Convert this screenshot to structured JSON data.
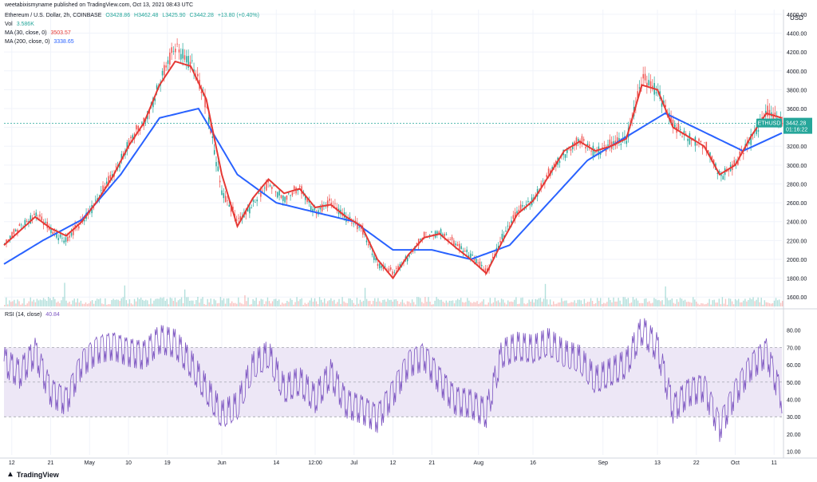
{
  "header": {
    "publisher": "weetabixismyname published on TradingView.com, Oct 13, 2021 08:43 UTC",
    "symbol": "Ethereum / U.S. Dollar, 2h, COINBASE",
    "ohlc": {
      "o": "O3428.86",
      "h": "H3462.48",
      "l": "L3425.90",
      "c": "C3442.28",
      "chg": "+13.80 (+0.40%)"
    },
    "vol_label": "Vol",
    "vol_value": "3.586K",
    "ma30_label": "MA (30, close, 0)",
    "ma30_value": "3503.57",
    "ma200_label": "MA (200, close, 0)",
    "ma200_value": "3338.65",
    "rsi_label": "RSI (14, close)",
    "rsi_value": "40.84",
    "currency": "USD"
  },
  "price_tag": {
    "symbol": "ETHUSD",
    "price": "3442.28",
    "countdown": "01:16:22"
  },
  "branding": {
    "logo_text": "TradingView",
    "logo_icon": "tradingview-logo-icon"
  },
  "colors": {
    "up": "#26a69a",
    "down": "#ef5350",
    "ma30": "#e53935",
    "ma200": "#2962ff",
    "rsi": "#7e57c2",
    "rsi_band": "#ede7f6"
  },
  "chart_data": [
    {
      "type": "line",
      "subtype": "candlestick-with-moving-averages",
      "title": "Ethereum / U.S. Dollar, 2h, COINBASE",
      "ylim": [
        1500,
        4650
      ],
      "y_ticks": [
        "1600.00",
        "1800.00",
        "2000.00",
        "2200.00",
        "2400.00",
        "2600.00",
        "2800.00",
        "3000.00",
        "3200.00",
        "3400.00",
        "3600.00",
        "3800.00",
        "4000.00",
        "4200.00",
        "4400.00",
        "4600.00"
      ],
      "x_ticks": [
        "12",
        "21",
        "May",
        "10",
        "19",
        "Jun",
        "14",
        "12:00",
        "Jul",
        "12",
        "21",
        "Aug",
        "16",
        "Sep",
        "13",
        "22",
        "Oct",
        "11"
      ],
      "grid": true,
      "series": [
        {
          "name": "Ethereum / U.S. Dollar",
          "style": "candles",
          "x": [
            0,
            2,
            4,
            6,
            8,
            10,
            12,
            14,
            16,
            18,
            20,
            22,
            24,
            26,
            28,
            30,
            32,
            34,
            36,
            38,
            40,
            42,
            44,
            46,
            48,
            50,
            52,
            54,
            56,
            58,
            60,
            62,
            64,
            66,
            68,
            70,
            72,
            74,
            76,
            78,
            80,
            82,
            84,
            86,
            88,
            90,
            92,
            94,
            96,
            98,
            100
          ],
          "values": [
            2150,
            2350,
            2480,
            2300,
            2200,
            2400,
            2650,
            2900,
            3250,
            3450,
            3900,
            4250,
            4100,
            3600,
            2700,
            2400,
            2600,
            2800,
            2650,
            2750,
            2500,
            2600,
            2450,
            2300,
            1950,
            1850,
            2050,
            2250,
            2300,
            2150,
            2050,
            1850,
            2250,
            2500,
            2650,
            2900,
            3150,
            3250,
            3150,
            3200,
            3300,
            3900,
            3800,
            3400,
            3300,
            3200,
            2900,
            3000,
            3300,
            3550,
            3450
          ]
        },
        {
          "name": "MA (30, close, 0)",
          "style": "line",
          "x": [
            0,
            2,
            4,
            6,
            8,
            10,
            12,
            14,
            16,
            18,
            20,
            22,
            24,
            26,
            28,
            30,
            32,
            34,
            36,
            38,
            40,
            42,
            44,
            46,
            48,
            50,
            52,
            54,
            56,
            58,
            60,
            62,
            64,
            66,
            68,
            70,
            72,
            74,
            76,
            78,
            80,
            82,
            84,
            86,
            88,
            90,
            92,
            94,
            96,
            98,
            100
          ],
          "values": [
            2150,
            2300,
            2450,
            2330,
            2250,
            2400,
            2620,
            2880,
            3200,
            3450,
            3850,
            4100,
            4050,
            3700,
            2900,
            2350,
            2650,
            2850,
            2700,
            2750,
            2550,
            2580,
            2450,
            2350,
            2000,
            1800,
            2050,
            2230,
            2270,
            2130,
            2000,
            1850,
            2180,
            2480,
            2620,
            2880,
            3150,
            3250,
            3150,
            3200,
            3280,
            3850,
            3800,
            3400,
            3300,
            3200,
            2900,
            3000,
            3300,
            3550,
            3500
          ]
        },
        {
          "name": "MA (200, close, 0)",
          "style": "line",
          "x": [
            0,
            5,
            10,
            15,
            20,
            25,
            30,
            35,
            40,
            45,
            50,
            55,
            60,
            65,
            70,
            75,
            80,
            85,
            90,
            95,
            100
          ],
          "values": [
            1950,
            2200,
            2420,
            2900,
            3500,
            3600,
            2900,
            2600,
            2500,
            2400,
            2100,
            2100,
            2000,
            2150,
            2600,
            3050,
            3300,
            3550,
            3350,
            3150,
            3340
          ]
        }
      ]
    },
    {
      "type": "line",
      "title": "RSI (14, close)",
      "ylim": [
        8,
        90
      ],
      "y_ticks": [
        "10.00",
        "20.00",
        "30.00",
        "40.00",
        "50.00",
        "60.00",
        "70.00",
        "80.00"
      ],
      "bands": {
        "upper": 70,
        "middle": 50,
        "lower": 30
      },
      "series": [
        {
          "name": "RSI (14, close)",
          "x": [
            0,
            2,
            4,
            6,
            8,
            10,
            12,
            14,
            16,
            18,
            20,
            22,
            24,
            26,
            28,
            30,
            32,
            34,
            36,
            38,
            40,
            42,
            44,
            46,
            48,
            50,
            52,
            54,
            56,
            58,
            60,
            62,
            64,
            66,
            68,
            70,
            72,
            74,
            76,
            78,
            80,
            82,
            84,
            86,
            88,
            90,
            92,
            94,
            96,
            98,
            100
          ],
          "values": [
            62,
            55,
            68,
            45,
            40,
            62,
            70,
            72,
            68,
            66,
            75,
            72,
            60,
            45,
            30,
            35,
            58,
            65,
            45,
            50,
            40,
            55,
            38,
            35,
            30,
            45,
            62,
            66,
            52,
            40,
            38,
            32,
            66,
            70,
            68,
            72,
            65,
            62,
            50,
            55,
            60,
            80,
            70,
            35,
            45,
            48,
            25,
            45,
            60,
            68,
            41
          ]
        }
      ]
    }
  ]
}
